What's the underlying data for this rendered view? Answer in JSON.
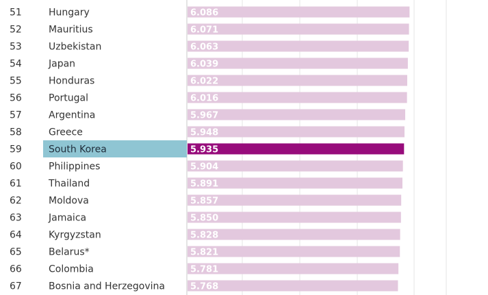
{
  "chart_data": {
    "type": "bar",
    "orientation": "horizontal",
    "highlight": "South Korea",
    "colors": {
      "bar": "#e3c8de",
      "bar_highlight": "#970c7b",
      "row_highlight": "#8fc5d3",
      "value_text": "#ffffff"
    },
    "xlim": [
      0,
      7.2
    ],
    "grid": true,
    "rows": [
      {
        "rank": "51",
        "country": "Hungary",
        "value": 6.086,
        "label": "6.086"
      },
      {
        "rank": "52",
        "country": "Mauritius",
        "value": 6.071,
        "label": "6.071"
      },
      {
        "rank": "53",
        "country": "Uzbekistan",
        "value": 6.063,
        "label": "6.063"
      },
      {
        "rank": "54",
        "country": "Japan",
        "value": 6.039,
        "label": "6.039"
      },
      {
        "rank": "55",
        "country": "Honduras",
        "value": 6.022,
        "label": "6.022"
      },
      {
        "rank": "56",
        "country": "Portugal",
        "value": 6.016,
        "label": "6.016"
      },
      {
        "rank": "57",
        "country": "Argentina",
        "value": 5.967,
        "label": "5.967"
      },
      {
        "rank": "58",
        "country": "Greece",
        "value": 5.948,
        "label": "5.948"
      },
      {
        "rank": "59",
        "country": "South Korea",
        "value": 5.935,
        "label": "5.935"
      },
      {
        "rank": "60",
        "country": "Philippines",
        "value": 5.904,
        "label": "5.904"
      },
      {
        "rank": "61",
        "country": "Thailand",
        "value": 5.891,
        "label": "5.891"
      },
      {
        "rank": "62",
        "country": "Moldova",
        "value": 5.857,
        "label": "5.857"
      },
      {
        "rank": "63",
        "country": "Jamaica",
        "value": 5.85,
        "label": "5.850"
      },
      {
        "rank": "64",
        "country": "Kyrgyzstan",
        "value": 5.828,
        "label": "5.828"
      },
      {
        "rank": "65",
        "country": "Belarus*",
        "value": 5.821,
        "label": "5.821"
      },
      {
        "rank": "66",
        "country": "Colombia",
        "value": 5.781,
        "label": "5.781"
      },
      {
        "rank": "67",
        "country": "Bosnia and Herzegovina",
        "value": 5.768,
        "label": "5.768"
      }
    ]
  }
}
